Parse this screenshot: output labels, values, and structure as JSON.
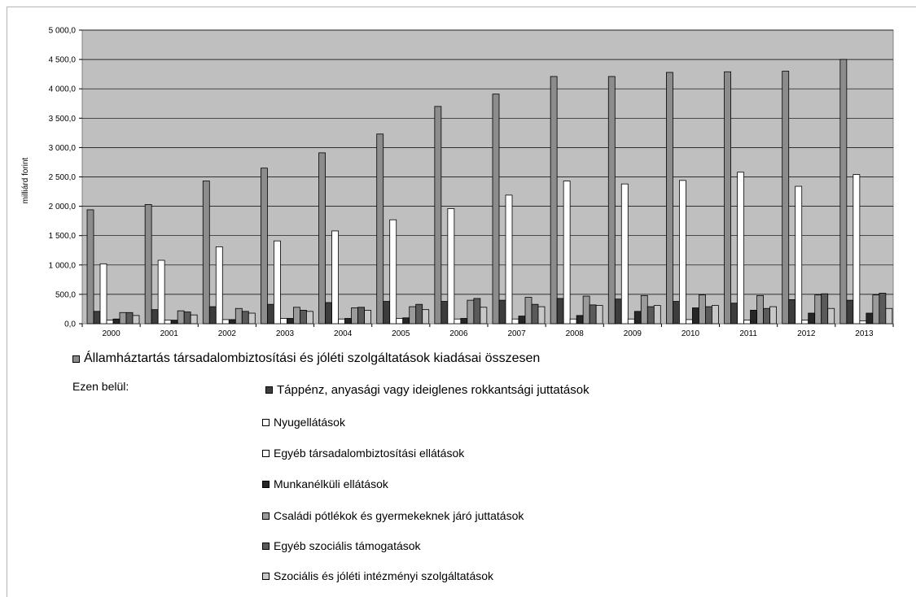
{
  "chart_data": {
    "type": "bar",
    "ylabel": "milliárd forint",
    "ylim": [
      0,
      5000
    ],
    "yticks": [
      "0,0",
      "500,0",
      "1 000,0",
      "1 500,0",
      "2 000,0",
      "2 500,0",
      "3 000,0",
      "3 500,0",
      "4 000,0",
      "4 500,0",
      "5 000,0"
    ],
    "grid": true,
    "legend_position": "bottom",
    "categories": [
      "2000",
      "2001",
      "2002",
      "2003",
      "2004",
      "2005",
      "2006",
      "2007",
      "2008",
      "2009",
      "2010",
      "2011",
      "2012",
      "2013"
    ],
    "series": [
      {
        "name": "Államháztartás társadalombiztosítási és jóléti szolgáltatások kiadásai összesen",
        "color": "#8c8c8c",
        "values": [
          1940,
          2030,
          2430,
          2650,
          2910,
          3230,
          3700,
          3910,
          4210,
          4210,
          4280,
          4290,
          4300,
          4500
        ]
      },
      {
        "name": "Táppénz, anyasági vagy ideiglenes rokkantsági juttatások",
        "color": "#3d3d3d",
        "values": [
          210,
          240,
          290,
          330,
          360,
          380,
          380,
          400,
          430,
          420,
          380,
          350,
          410,
          400
        ]
      },
      {
        "name": "Nyugellátások",
        "color": "#ffffff",
        "values": [
          1020,
          1080,
          1310,
          1410,
          1580,
          1770,
          1960,
          2190,
          2430,
          2380,
          2440,
          2580,
          2340,
          2540
        ]
      },
      {
        "name": "Egyéb társadalombiztosítási ellátások",
        "color": "#ffffff",
        "values": [
          60,
          60,
          70,
          90,
          80,
          90,
          80,
          80,
          80,
          80,
          70,
          60,
          60,
          50
        ]
      },
      {
        "name": "Munkanélküli ellátások",
        "color": "#262626",
        "values": [
          80,
          60,
          70,
          90,
          90,
          100,
          90,
          130,
          140,
          210,
          270,
          230,
          180,
          180
        ]
      },
      {
        "name": "Családi pótlékok és gyermekeknek járó juttatások",
        "color": "#9a9a9a",
        "values": [
          190,
          220,
          260,
          280,
          270,
          290,
          400,
          450,
          470,
          480,
          490,
          480,
          490,
          490
        ]
      },
      {
        "name": "Egyéb szociális támogatások",
        "color": "#5a5a5a",
        "values": [
          190,
          200,
          210,
          230,
          280,
          330,
          430,
          330,
          320,
          290,
          290,
          260,
          510,
          520
        ]
      },
      {
        "name": "Szociális és jóléti intézményi szolgáltatások",
        "color": "#c8c8c8",
        "values": [
          140,
          150,
          180,
          210,
          230,
          240,
          280,
          290,
          310,
          310,
          310,
          290,
          260,
          260
        ]
      }
    ]
  },
  "legend": {
    "main_label": "Államháztartás társadalombiztosítási és jóléti szolgáltatások kiadásai összesen",
    "ezen_belul": "Ezen belül:",
    "items": [
      {
        "label": "Táppénz, anyasági vagy ideiglenes rokkantsági juttatások",
        "color": "#3d3d3d"
      },
      {
        "label": "Nyugellátások",
        "color": "#ffffff"
      },
      {
        "label": "Egyéb társadalombiztosítási ellátások",
        "color": "#ffffff"
      },
      {
        "label": "Munkanélküli ellátások",
        "color": "#262626"
      },
      {
        "label": "Családi pótlékok és gyermekeknek járó juttatások",
        "color": "#9a9a9a"
      },
      {
        "label": "Egyéb szociális támogatások",
        "color": "#5a5a5a"
      },
      {
        "label": "Szociális és jóléti intézményi szolgáltatások",
        "color": "#c8c8c8"
      }
    ],
    "main_color": "#8c8c8c"
  }
}
